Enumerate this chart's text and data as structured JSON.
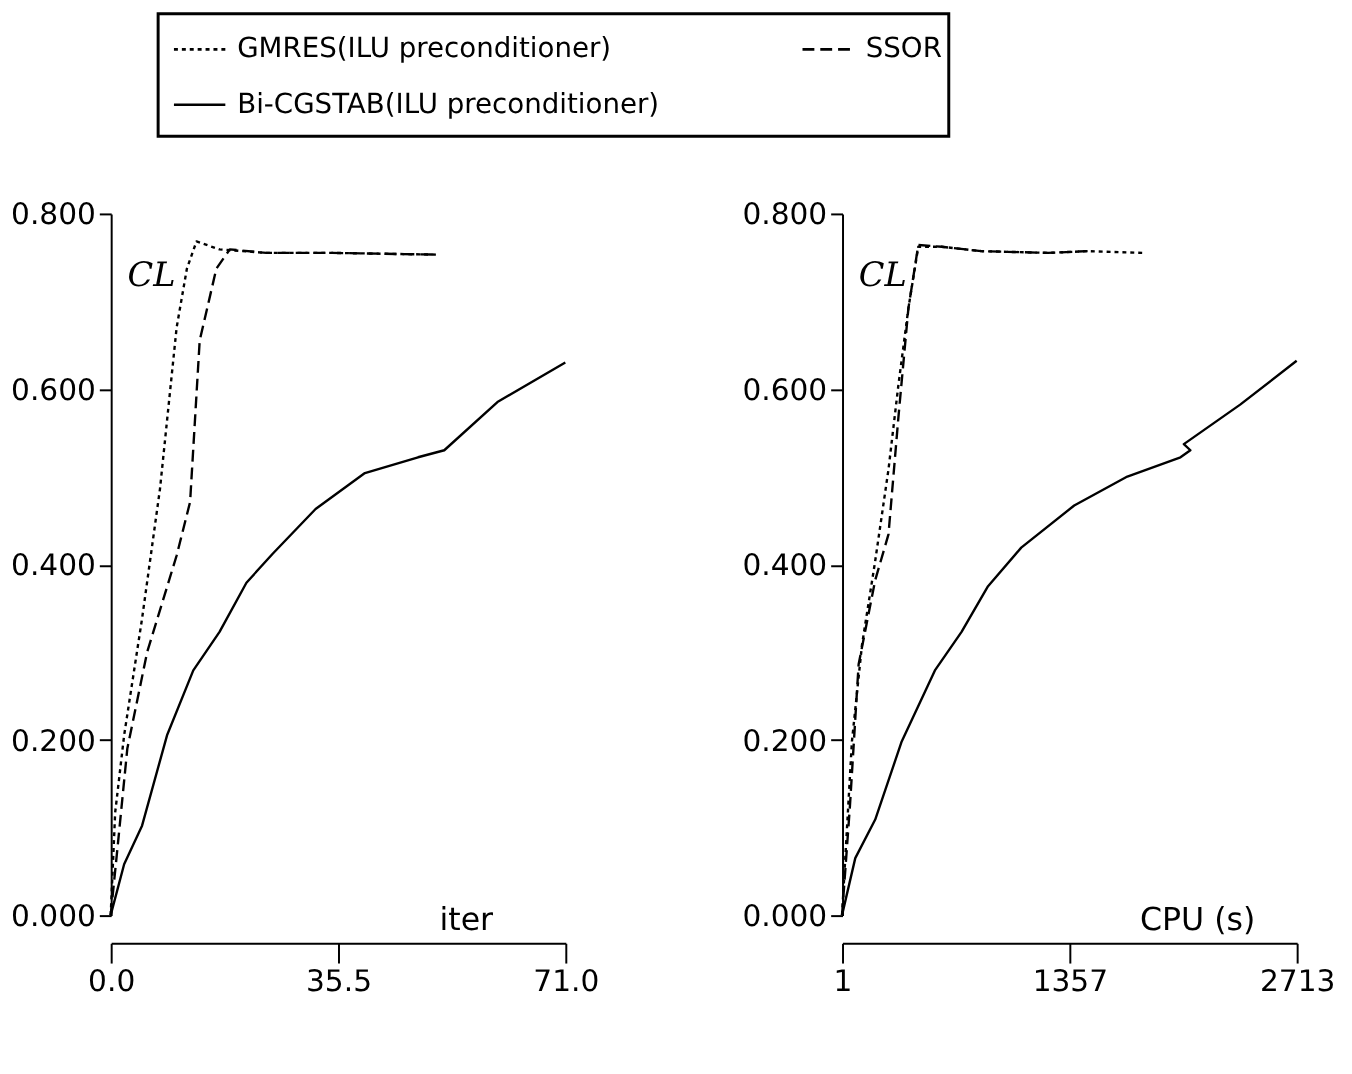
{
  "chart_data": [
    {
      "type": "line",
      "xlabel": "iter",
      "ylabel": "CL",
      "legend": "top",
      "grid": false,
      "marker": "none",
      "xlim": [
        0,
        71
      ],
      "xticks": [
        {
          "value": 0,
          "label": "0.0"
        },
        {
          "value": 35.5,
          "label": "35.5"
        },
        {
          "value": 71,
          "label": "71.0"
        }
      ],
      "ylim": [
        0,
        0.8
      ],
      "yticks": [
        {
          "value": 0,
          "label": "0.000"
        },
        {
          "value": 0.2,
          "label": "0.200"
        },
        {
          "value": 0.4,
          "label": "0.400"
        },
        {
          "value": 0.6,
          "label": "0.600"
        },
        {
          "value": 0.8,
          "label": "0.800"
        }
      ],
      "series": [
        {
          "name": "GMRES(ILU preconditioner)",
          "color": "#000000",
          "line_style": "dotted",
          "x": [
            0,
            0.7,
            2.1,
            4.9,
            7.7,
            10.3,
            11.9,
            13.4,
            17.0,
            24.3,
            34.6,
            51.1
          ],
          "values": [
            0,
            0.117,
            0.205,
            0.338,
            0.486,
            0.67,
            0.737,
            0.768,
            0.759,
            0.755,
            0.755,
            0.753
          ]
        },
        {
          "name": "SSOR",
          "color": "#000000",
          "line_style": "dashed",
          "x": [
            0,
            1.0,
            2.6,
            5.7,
            10.3,
            12.4,
            13.9,
            16.5,
            18.6,
            24.3,
            34.6,
            51.1
          ],
          "values": [
            0,
            0.072,
            0.19,
            0.3,
            0.41,
            0.471,
            0.655,
            0.737,
            0.759,
            0.755,
            0.755,
            0.753
          ]
        },
        {
          "name": "Bi-CGSTAB(ILU preconditioner)",
          "color": "#000000",
          "line_style": "solid",
          "x": [
            0,
            2.1,
            4.9,
            8.8,
            12.9,
            17.0,
            21.2,
            25.3,
            32.0,
            39.7,
            48.0,
            52.1,
            60.4,
            71.0
          ],
          "values": [
            0,
            0.058,
            0.102,
            0.205,
            0.279,
            0.323,
            0.379,
            0.412,
            0.463,
            0.504,
            0.522,
            0.53,
            0.585,
            0.63
          ]
        }
      ]
    },
    {
      "type": "line",
      "xlabel": "CPU (s)",
      "ylabel": "CL",
      "grid": false,
      "marker": "none",
      "xlim": [
        1,
        2713
      ],
      "xticks": [
        1,
        1357,
        2713
      ],
      "ylim": [
        0,
        0.8
      ],
      "yticks": [
        {
          "value": 0,
          "label": "0.000"
        },
        {
          "value": 0.2,
          "label": "0.200"
        },
        {
          "value": 0.4,
          "label": "0.400"
        },
        {
          "value": 0.6,
          "label": "0.600"
        },
        {
          "value": 0.8,
          "label": "0.800"
        }
      ],
      "series": [
        {
          "color": "#000000",
          "line_style": "dotted",
          "x": [
            1,
            60,
            120,
            199,
            278,
            337,
            397,
            456,
            595,
            832,
            1227,
            1466,
            1802
          ],
          "values": [
            0,
            0.198,
            0.308,
            0.404,
            0.508,
            0.604,
            0.692,
            0.762,
            0.762,
            0.757,
            0.755,
            0.757,
            0.755
          ]
        },
        {
          "color": "#000000",
          "line_style": "dashed",
          "x": [
            1,
            48,
            100,
            199,
            278,
            337,
            397,
            456,
            595,
            832,
            1227,
            1466
          ],
          "values": [
            0,
            0.124,
            0.286,
            0.382,
            0.434,
            0.567,
            0.692,
            0.764,
            0.762,
            0.757,
            0.755,
            0.757
          ]
        },
        {
          "color": "#000000",
          "line_style": "solid",
          "x": [
            1,
            80,
            199,
            357,
            555,
            714,
            872,
            1070,
            1386,
            1703,
            2020,
            2079,
            2040,
            2376,
            2713
          ],
          "values": [
            0,
            0.065,
            0.109,
            0.198,
            0.279,
            0.323,
            0.375,
            0.419,
            0.467,
            0.5,
            0.522,
            0.53,
            0.537,
            0.582,
            0.632
          ]
        }
      ]
    }
  ]
}
